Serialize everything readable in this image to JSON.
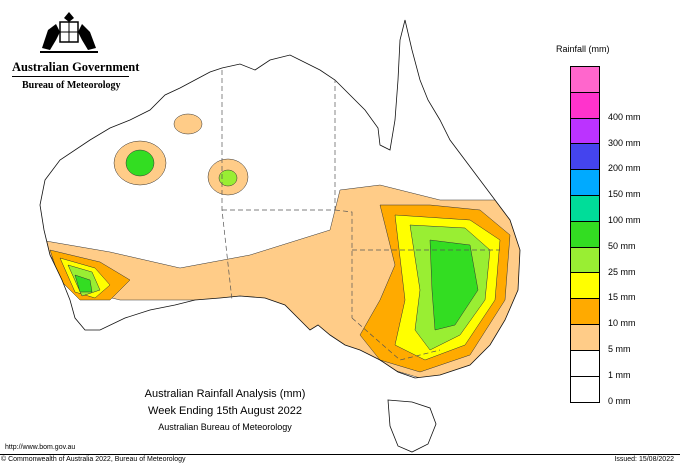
{
  "header": {
    "government_name": "Australian Government",
    "bureau_name": "Bureau of Meteorology"
  },
  "legend": {
    "title": "Rainfall (mm)",
    "items": [
      {
        "label": "",
        "color": "#ff66cc"
      },
      {
        "label": "400 mm",
        "color": "#ff33cc"
      },
      {
        "label": "300 mm",
        "color": "#bb33ff"
      },
      {
        "label": "200 mm",
        "color": "#4444ee"
      },
      {
        "label": "150 mm",
        "color": "#00aaff"
      },
      {
        "label": "100 mm",
        "color": "#00dd99"
      },
      {
        "label": "50 mm",
        "color": "#33dd22"
      },
      {
        "label": "25 mm",
        "color": "#99ee33"
      },
      {
        "label": "15 mm",
        "color": "#ffff00"
      },
      {
        "label": "10 mm",
        "color": "#ffaa00"
      },
      {
        "label": "5 mm",
        "color": "#ffcc88"
      },
      {
        "label": "1 mm",
        "color": "#ffffff"
      },
      {
        "label": "0 mm",
        "color": ""
      }
    ]
  },
  "caption": {
    "line1": "Australian Rainfall Analysis (mm)",
    "line2": "Week Ending 15th August 2022",
    "line3": "Australian Bureau of Meteorology"
  },
  "footer": {
    "url": "http://www.bom.gov.au",
    "copyright": "© Commonwealth of Australia 2022, Bureau of Meteorology",
    "issued": "Issued: 15/08/2022"
  }
}
